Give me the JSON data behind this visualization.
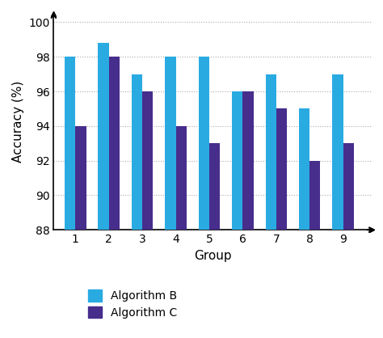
{
  "groups": [
    1,
    2,
    3,
    4,
    5,
    6,
    7,
    8,
    9
  ],
  "algorithm_b": [
    98,
    98.8,
    97,
    98,
    98,
    96,
    97,
    95,
    97
  ],
  "algorithm_c": [
    94,
    98,
    96,
    94,
    93,
    96,
    95,
    92,
    93
  ],
  "color_b": "#29ABE2",
  "color_c": "#472D8C",
  "ylabel": "Accuracy (%)",
  "xlabel": "Group",
  "ylim_min": 88,
  "ylim_max": 100.5,
  "yticks": [
    88,
    90,
    92,
    94,
    96,
    98,
    100
  ],
  "legend_b": "Algorithm B",
  "legend_c": "Algorithm C",
  "bar_width": 0.32,
  "background_color": "#ffffff"
}
